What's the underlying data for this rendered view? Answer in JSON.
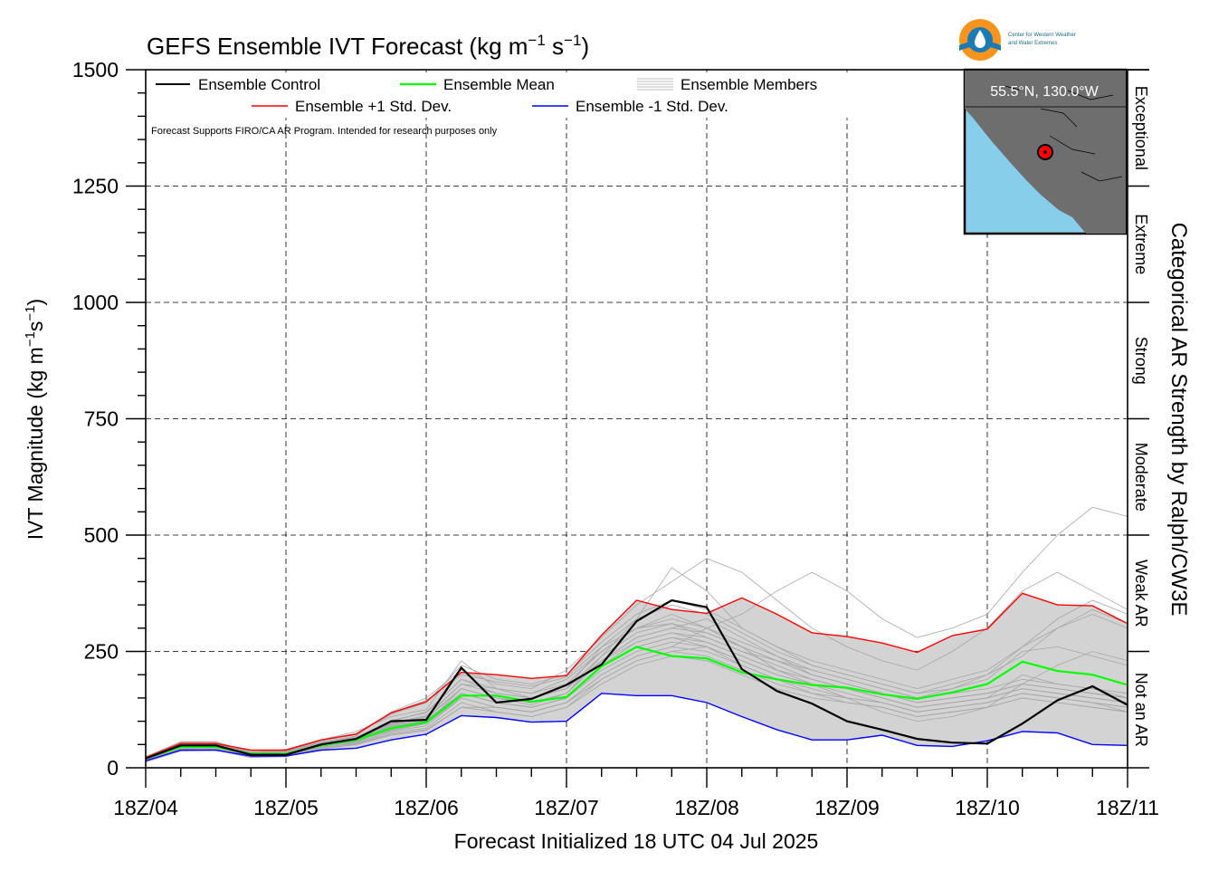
{
  "chart_data": {
    "type": "line",
    "title": "GEFS Ensemble IVT Forecast (kg m",
    "title_sup1": "−1",
    "title_mid": " s",
    "title_sup2": "−1",
    "title_end": ")",
    "xlabel": "Forecast Initialized 18 UTC 04 Jul 2025",
    "ylabel": "IVT Magnitude (kg m",
    "ylabel_sup1": "−1",
    "ylabel_mid": "s",
    "ylabel_sup2": "−1",
    "ylabel_end": ")",
    "right_label": "Categorical AR Strength by Ralph/CW3E",
    "note": "Forecast Supports FIRO/CA AR Program. Intended for research purposes only",
    "location": "55.5°N, 130.0°W",
    "logo_line1": "Center for Western Weather",
    "logo_line2": "and Water Extremes",
    "xlim": [
      0,
      168
    ],
    "ylim": [
      0,
      1500
    ],
    "x_ticks": [
      {
        "x": 0,
        "label": "18Z/04"
      },
      {
        "x": 24,
        "label": "18Z/05"
      },
      {
        "x": 48,
        "label": "18Z/06"
      },
      {
        "x": 72,
        "label": "18Z/07"
      },
      {
        "x": 96,
        "label": "18Z/08"
      },
      {
        "x": 120,
        "label": "18Z/09"
      },
      {
        "x": 144,
        "label": "18Z/10"
      },
      {
        "x": 168,
        "label": "18Z/11"
      }
    ],
    "y_ticks": [
      0,
      250,
      500,
      750,
      1000,
      1250,
      1500
    ],
    "categories": [
      {
        "label": "Not an AR",
        "from": 0,
        "to": 250
      },
      {
        "label": "Weak AR",
        "from": 250,
        "to": 500
      },
      {
        "label": "Moderate",
        "from": 500,
        "to": 750
      },
      {
        "label": "Strong",
        "from": 750,
        "to": 1000
      },
      {
        "label": "Extreme",
        "from": 1000,
        "to": 1250
      },
      {
        "label": "Exceptional",
        "from": 1250,
        "to": 1500
      }
    ],
    "grid": true,
    "legend_position": "top-left",
    "x": [
      0,
      6,
      12,
      18,
      24,
      30,
      36,
      42,
      48,
      54,
      60,
      66,
      72,
      78,
      84,
      90,
      96,
      102,
      108,
      114,
      120,
      126,
      132,
      138,
      144,
      150,
      156,
      162,
      168
    ],
    "series": [
      {
        "name": "Ensemble Control",
        "color": "#000000",
        "values": [
          20,
          48,
          48,
          28,
          28,
          50,
          62,
          100,
          103,
          215,
          140,
          148,
          178,
          222,
          315,
          360,
          345,
          212,
          165,
          138,
          100,
          82,
          62,
          54,
          52,
          95,
          145,
          175,
          135
        ]
      },
      {
        "name": "Ensemble Mean",
        "color": "#00ff00",
        "values": [
          20,
          45,
          45,
          30,
          30,
          48,
          60,
          85,
          98,
          155,
          155,
          142,
          152,
          218,
          260,
          240,
          235,
          205,
          190,
          178,
          172,
          158,
          148,
          162,
          180,
          228,
          208,
          200,
          178
        ]
      },
      {
        "name": "Ensemble +1 Std. Dev.",
        "color": "#ff0000",
        "values": [
          22,
          52,
          52,
          38,
          38,
          60,
          72,
          118,
          142,
          205,
          200,
          192,
          198,
          285,
          360,
          340,
          332,
          365,
          330,
          290,
          282,
          268,
          248,
          284,
          298,
          375,
          350,
          348,
          310
        ]
      },
      {
        "name": "Ensemble -1 Std. Dev.",
        "color": "#0000ff",
        "values": [
          15,
          38,
          38,
          25,
          25,
          38,
          42,
          60,
          72,
          112,
          108,
          98,
          100,
          160,
          155,
          155,
          140,
          110,
          82,
          60,
          60,
          70,
          48,
          46,
          58,
          78,
          75,
          50,
          48
        ]
      }
    ],
    "members_label": "Ensemble Members",
    "members_color": "#a6a6a6",
    "spread_fill_color": "#d3d3d3",
    "members": [
      [
        18,
        50,
        52,
        30,
        40,
        60,
        78,
        110,
        125,
        230,
        170,
        160,
        190,
        250,
        300,
        330,
        300,
        260,
        210,
        180,
        150,
        120,
        100,
        110,
        130,
        180,
        220,
        250,
        230
      ],
      [
        15,
        40,
        42,
        26,
        30,
        48,
        55,
        85,
        95,
        170,
        150,
        135,
        160,
        240,
        320,
        430,
        380,
        300,
        260,
        220,
        200,
        180,
        160,
        170,
        190,
        250,
        260,
        240,
        220
      ],
      [
        22,
        55,
        54,
        32,
        35,
        55,
        68,
        120,
        150,
        210,
        180,
        170,
        210,
        280,
        350,
        400,
        450,
        420,
        360,
        300,
        260,
        230,
        210,
        250,
        300,
        380,
        420,
        380,
        340
      ],
      [
        12,
        36,
        38,
        22,
        26,
        40,
        50,
        70,
        80,
        130,
        130,
        120,
        140,
        190,
        230,
        250,
        260,
        230,
        200,
        180,
        170,
        150,
        130,
        140,
        150,
        200,
        180,
        170,
        150
      ],
      [
        20,
        48,
        50,
        30,
        32,
        52,
        60,
        95,
        110,
        180,
        170,
        150,
        170,
        260,
        300,
        310,
        280,
        250,
        230,
        210,
        190,
        170,
        150,
        170,
        200,
        260,
        300,
        330,
        300
      ],
      [
        18,
        46,
        46,
        28,
        30,
        50,
        62,
        88,
        100,
        160,
        140,
        130,
        150,
        210,
        250,
        270,
        260,
        220,
        190,
        160,
        150,
        140,
        120,
        130,
        140,
        160,
        150,
        140,
        120
      ],
      [
        16,
        44,
        44,
        26,
        28,
        46,
        58,
        80,
        95,
        150,
        130,
        120,
        140,
        200,
        240,
        260,
        300,
        330,
        380,
        420,
        380,
        320,
        280,
        300,
        330,
        420,
        500,
        560,
        540
      ],
      [
        20,
        50,
        50,
        30,
        34,
        54,
        66,
        100,
        120,
        190,
        160,
        150,
        170,
        230,
        280,
        300,
        320,
        280,
        240,
        200,
        180,
        160,
        140,
        150,
        160,
        180,
        170,
        160,
        150
      ],
      [
        14,
        40,
        40,
        24,
        26,
        44,
        52,
        75,
        85,
        140,
        120,
        110,
        130,
        180,
        220,
        240,
        230,
        200,
        170,
        150,
        140,
        130,
        110,
        120,
        130,
        150,
        140,
        130,
        120
      ],
      [
        22,
        54,
        54,
        34,
        36,
        58,
        72,
        115,
        140,
        220,
        190,
        180,
        200,
        270,
        330,
        360,
        340,
        300,
        260,
        230,
        210,
        190,
        170,
        190,
        210,
        260,
        320,
        360,
        330
      ],
      [
        18,
        48,
        48,
        28,
        30,
        50,
        64,
        92,
        105,
        170,
        150,
        140,
        160,
        230,
        270,
        290,
        270,
        240,
        210,
        190,
        170,
        150,
        130,
        140,
        150,
        170,
        160,
        150,
        140
      ],
      [
        16,
        42,
        44,
        26,
        28,
        46,
        56,
        82,
        96,
        160,
        140,
        130,
        150,
        220,
        260,
        280,
        260,
        230,
        200,
        180,
        160,
        140,
        120,
        130,
        140,
        160,
        150,
        140,
        130
      ],
      [
        20,
        50,
        52,
        30,
        32,
        52,
        62,
        96,
        112,
        180,
        160,
        150,
        170,
        240,
        290,
        310,
        290,
        260,
        230,
        200,
        180,
        160,
        140,
        150,
        160,
        180,
        170,
        160,
        150
      ],
      [
        15,
        40,
        40,
        24,
        26,
        44,
        54,
        78,
        90,
        150,
        130,
        120,
        140,
        200,
        240,
        260,
        250,
        220,
        190,
        170,
        150,
        140,
        120,
        130,
        140,
        160,
        150,
        140,
        130
      ],
      [
        24,
        56,
        56,
        34,
        38,
        60,
        74,
        118,
        145,
        200,
        185,
        175,
        195,
        260,
        320,
        350,
        330,
        290,
        250,
        220,
        200,
        180,
        160,
        180,
        200,
        240,
        300,
        340,
        310
      ],
      [
        18,
        46,
        46,
        28,
        30,
        50,
        60,
        90,
        102,
        160,
        140,
        130,
        150,
        220,
        260,
        280,
        270,
        240,
        210,
        190,
        170,
        150,
        130,
        140,
        150,
        170,
        160,
        150,
        140
      ],
      [
        14,
        38,
        38,
        22,
        24,
        42,
        50,
        72,
        82,
        130,
        120,
        110,
        130,
        190,
        230,
        250,
        240,
        210,
        180,
        160,
        140,
        130,
        110,
        120,
        130,
        150,
        140,
        130,
        120
      ],
      [
        20,
        52,
        52,
        32,
        34,
        54,
        64,
        102,
        118,
        190,
        170,
        160,
        180,
        250,
        300,
        320,
        300,
        270,
        240,
        210,
        190,
        170,
        150,
        160,
        170,
        190,
        180,
        170,
        160
      ],
      [
        18,
        48,
        48,
        28,
        30,
        50,
        62,
        94,
        108,
        170,
        150,
        140,
        160,
        230,
        280,
        300,
        290,
        260,
        230,
        200,
        180,
        160,
        140,
        150,
        160,
        180,
        170,
        160,
        150
      ],
      [
        16,
        44,
        44,
        26,
        28,
        46,
        58,
        84,
        98,
        160,
        140,
        130,
        150,
        220,
        270,
        290,
        280,
        250,
        220,
        190,
        170,
        150,
        130,
        140,
        150,
        170,
        160,
        150,
        140
      ]
    ]
  }
}
